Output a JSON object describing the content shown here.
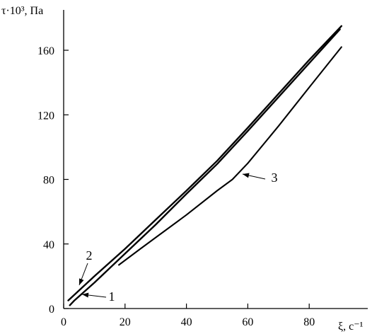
{
  "chart_data": {
    "type": "line",
    "ylabel": "τ·10³, Па",
    "xlabel": "ξ, с⁻¹",
    "xlim": [
      0,
      100
    ],
    "ylim": [
      0,
      185
    ],
    "xticks": [
      0,
      20,
      40,
      60,
      80
    ],
    "yticks": [
      0,
      40,
      80,
      120,
      160
    ],
    "x_tick_labels": [
      "0",
      "20",
      "40",
      "60",
      "80"
    ],
    "y_tick_labels": [
      "0",
      "40",
      "80",
      "120",
      "160"
    ],
    "grid": false,
    "series": [
      {
        "name": "1",
        "points": [
          [
            2.0,
            2.0
          ],
          [
            3.5,
            5.0
          ],
          [
            10.0,
            16.0
          ],
          [
            20.0,
            34.0
          ],
          [
            30.0,
            52.0
          ],
          [
            40.0,
            71.0
          ],
          [
            50.0,
            89.5
          ],
          [
            60.0,
            110.0
          ],
          [
            70.0,
            131.0
          ],
          [
            80.0,
            152.0
          ],
          [
            90.0,
            173.0
          ]
        ]
      },
      {
        "name": "2",
        "points": [
          [
            1.5,
            5.0
          ],
          [
            10.0,
            20.0
          ],
          [
            20.0,
            37.0
          ],
          [
            30.0,
            55.0
          ],
          [
            40.0,
            73.0
          ],
          [
            50.0,
            91.5
          ],
          [
            60.0,
            112.0
          ],
          [
            70.0,
            133.0
          ],
          [
            80.0,
            154.0
          ],
          [
            90.5,
            175.0
          ]
        ]
      },
      {
        "name": "3",
        "points": [
          [
            18.0,
            27.0
          ],
          [
            25.0,
            37.0
          ],
          [
            30.0,
            44.0
          ],
          [
            40.0,
            58.0
          ],
          [
            50.0,
            73.0
          ],
          [
            55.0,
            80.0
          ],
          [
            60.0,
            90.0
          ],
          [
            70.0,
            113.0
          ],
          [
            80.0,
            137.0
          ],
          [
            90.5,
            162.0
          ]
        ]
      }
    ],
    "annotations": [
      {
        "label": "1",
        "series": "1",
        "x": 5.0,
        "y": 8.0
      },
      {
        "label": "2",
        "series": "2",
        "x": 5.0,
        "y": 14.0
      },
      {
        "label": "3",
        "series": "3",
        "x": 58.0,
        "y": 86.0
      }
    ]
  }
}
